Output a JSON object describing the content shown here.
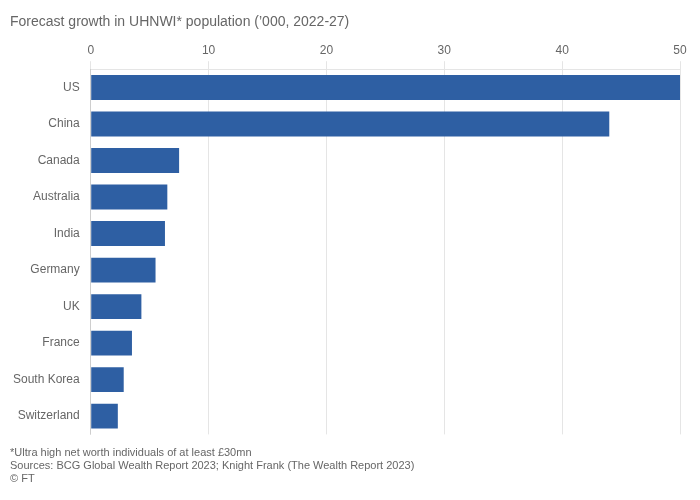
{
  "chart_data": {
    "type": "bar",
    "orientation": "horizontal",
    "title": "Forecast growth in UHNWI* population (’000, 2022-27)",
    "categories": [
      "US",
      "China",
      "Canada",
      "Australia",
      "India",
      "Germany",
      "UK",
      "France",
      "South Korea",
      "Switzerland"
    ],
    "values": [
      50,
      44,
      7.5,
      6.5,
      6.3,
      5.5,
      4.3,
      3.5,
      2.8,
      2.3
    ],
    "color": "#2e5fa3",
    "xlim": [
      0,
      50
    ],
    "xticks": [
      0,
      10,
      20,
      30,
      40,
      50
    ],
    "grid": true,
    "annotations": [
      "*Ultra high net worth individuals of at least £30mn",
      "Sources: BCG Global Wealth Report 2023; Knight Frank (The Wealth Report 2023)",
      "© FT"
    ]
  }
}
